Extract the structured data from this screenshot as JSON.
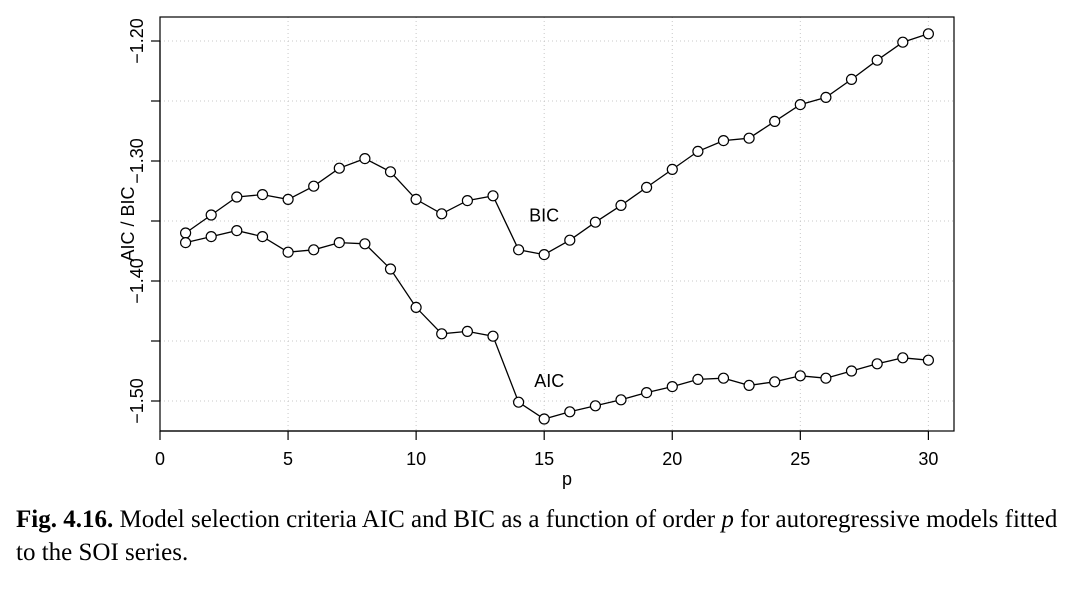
{
  "chart_data": {
    "type": "line",
    "xlabel": "p",
    "ylabel": "AIC / BIC",
    "xlim": [
      0,
      31
    ],
    "ylim": [
      -1.525,
      -1.18
    ],
    "x_ticks": [
      "0",
      "5",
      "10",
      "15",
      "20",
      "25",
      "30"
    ],
    "y_ticks": [
      "-1.20",
      "-1.30",
      "-1.40",
      "-1.50"
    ],
    "grid": true,
    "markers": "open-circle",
    "line_color": "#000000",
    "grid_color": "#c8c8c8",
    "x": [
      1,
      2,
      3,
      4,
      5,
      6,
      7,
      8,
      9,
      10,
      11,
      12,
      13,
      14,
      15,
      16,
      17,
      18,
      19,
      20,
      21,
      22,
      23,
      24,
      25,
      26,
      27,
      28,
      29,
      30
    ],
    "series": [
      {
        "name": "BIC",
        "values": [
          -1.36,
          -1.345,
          -1.33,
          -1.328,
          -1.332,
          -1.321,
          -1.306,
          -1.298,
          -1.309,
          -1.332,
          -1.344,
          -1.333,
          -1.329,
          -1.374,
          -1.378,
          -1.366,
          -1.351,
          -1.337,
          -1.322,
          -1.307,
          -1.292,
          -1.283,
          -1.281,
          -1.267,
          -1.253,
          -1.247,
          -1.232,
          -1.216,
          -1.201,
          -1.194
        ]
      },
      {
        "name": "AIC",
        "values": [
          -1.368,
          -1.363,
          -1.358,
          -1.363,
          -1.376,
          -1.374,
          -1.368,
          -1.369,
          -1.39,
          -1.422,
          -1.444,
          -1.442,
          -1.446,
          -1.501,
          -1.515,
          -1.509,
          -1.504,
          -1.499,
          -1.493,
          -1.488,
          -1.482,
          -1.481,
          -1.487,
          -1.484,
          -1.479,
          -1.481,
          -1.475,
          -1.469,
          -1.464,
          -1.466
        ]
      }
    ]
  },
  "caption": {
    "label": "Fig. 4.16.",
    "text": "Model selection criteria AIC and BIC as a function of order ",
    "emphasis": "p",
    "text_end": " for autoregressive models fitted to the SOI series."
  }
}
